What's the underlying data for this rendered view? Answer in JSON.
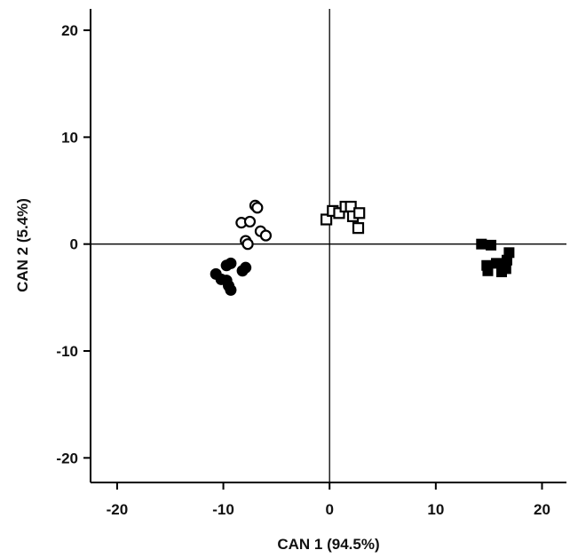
{
  "chart_data": {
    "type": "scatter",
    "title": "",
    "xlabel": "CAN 1 (94.5%)",
    "ylabel": "CAN 2 (5.4%)",
    "xlim": [
      -22.5,
      22.3
    ],
    "ylim": [
      -22.3,
      22
    ],
    "xticks": [
      -20,
      -10,
      0,
      10,
      20
    ],
    "yticks": [
      20,
      10,
      0,
      -10,
      -20
    ],
    "grid": false,
    "reference_lines": {
      "x": 0,
      "y": 0
    },
    "series": [
      {
        "marker": "open-circle",
        "points": [
          [
            -7,
            3.6
          ],
          [
            -6.8,
            3.4
          ],
          [
            -8.3,
            2.0
          ],
          [
            -7.5,
            2.1
          ],
          [
            -6.5,
            1.2
          ],
          [
            -6.0,
            0.8
          ],
          [
            -7.9,
            0.3
          ],
          [
            -7.7,
            0.0
          ]
        ]
      },
      {
        "marker": "filled-circle",
        "points": [
          [
            -9.3,
            -1.8
          ],
          [
            -9.7,
            -2.0
          ],
          [
            -7.9,
            -2.2
          ],
          [
            -8.2,
            -2.5
          ],
          [
            -10.7,
            -2.8
          ],
          [
            -10.2,
            -3.3
          ],
          [
            -9.7,
            -3.4
          ],
          [
            -9.5,
            -3.9
          ],
          [
            -9.3,
            -4.3
          ]
        ]
      },
      {
        "marker": "open-square",
        "points": [
          [
            -0.3,
            2.3
          ],
          [
            0.3,
            3.1
          ],
          [
            0.9,
            2.9
          ],
          [
            1.5,
            3.5
          ],
          [
            2.0,
            3.5
          ],
          [
            2.2,
            2.6
          ],
          [
            2.8,
            2.9
          ],
          [
            2.7,
            1.5
          ]
        ]
      },
      {
        "marker": "filled-square",
        "points": [
          [
            14.3,
            0.0
          ],
          [
            15.2,
            -0.1
          ],
          [
            16.9,
            -0.8
          ],
          [
            16.7,
            -1.5
          ],
          [
            15.7,
            -1.8
          ],
          [
            14.8,
            -2.0
          ],
          [
            14.9,
            -2.5
          ],
          [
            16.6,
            -2.3
          ],
          [
            16.2,
            -2.6
          ]
        ]
      }
    ]
  }
}
